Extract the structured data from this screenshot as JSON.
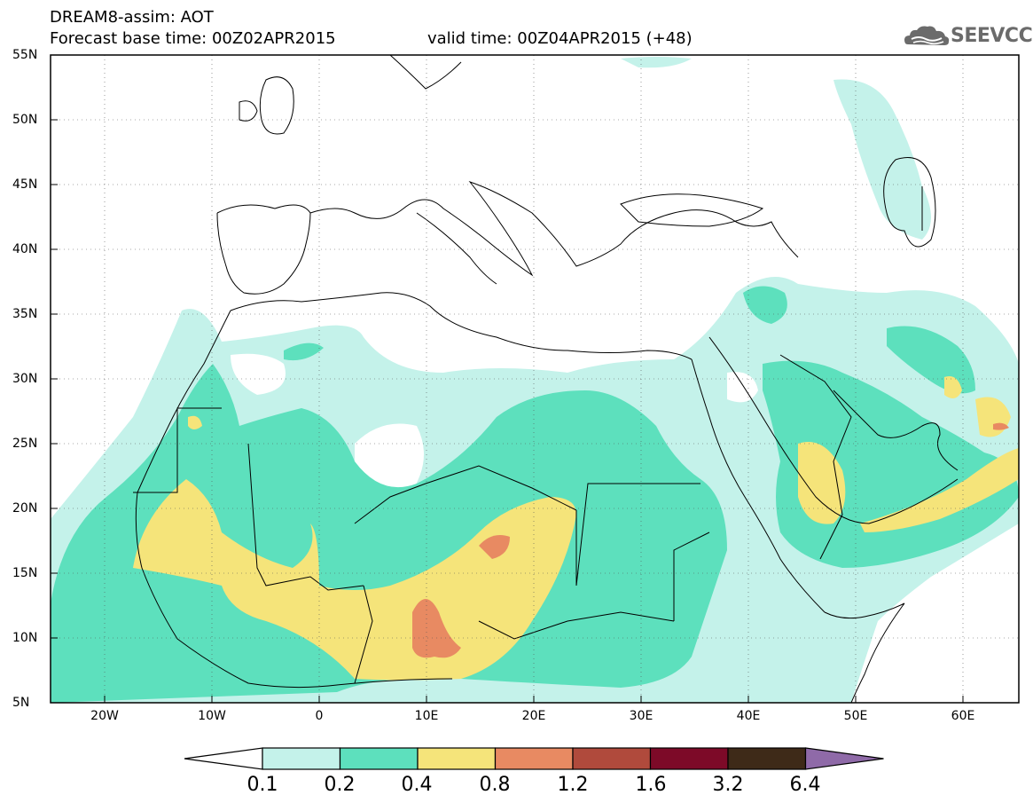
{
  "header": {
    "line1": "DREAM8-assim: AOT",
    "line2": "Forecast base time: 00Z02APR2015",
    "valid": "valid time: 00Z04APR2015 (+48)",
    "logo": "SEEVCCC"
  },
  "map": {
    "lon_range": [
      -25,
      65
    ],
    "lat_range": [
      5,
      55
    ],
    "lat_labels": [
      "55N",
      "50N",
      "45N",
      "40N",
      "35N",
      "30N",
      "25N",
      "20N",
      "15N",
      "10N",
      "5N"
    ],
    "lon_labels": [
      "20W",
      "10W",
      "0",
      "10E",
      "20E",
      "30E",
      "40E",
      "50E",
      "60E"
    ],
    "field": "AOT"
  },
  "colorbar": {
    "levels": [
      "0.1",
      "0.2",
      "0.4",
      "0.8",
      "1.2",
      "1.6",
      "3.2",
      "6.4"
    ],
    "colors": [
      "#ffffff",
      "#c4f2ea",
      "#5de0bd",
      "#f5e47a",
      "#e88a62",
      "#b04a3c",
      "#7d0a28",
      "#3e2a18",
      "#8f6aa8"
    ]
  }
}
